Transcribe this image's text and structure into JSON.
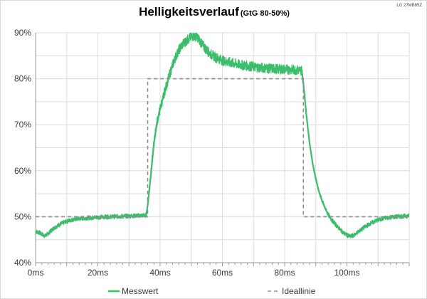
{
  "corner_label": "LG 27MB85Z",
  "chart_data": {
    "type": "line",
    "title": "Helligkeitsverlauf",
    "subtitle": "(GtG 80-50%)",
    "xlabel": "",
    "ylabel": "",
    "xlim": [
      0,
      120
    ],
    "ylim": [
      40,
      90
    ],
    "x_unit": "ms",
    "y_unit": "%",
    "grid": true,
    "legend_position": "bottom",
    "x_ticks": [
      0,
      20,
      40,
      60,
      80,
      100
    ],
    "x_tick_labels": [
      "0ms",
      "20ms",
      "40ms",
      "60ms",
      "80ms",
      "100ms"
    ],
    "y_ticks": [
      40,
      50,
      60,
      70,
      80,
      90
    ],
    "y_tick_labels": [
      "40%",
      "50%",
      "60%",
      "70%",
      "80%",
      "90%"
    ],
    "series": [
      {
        "name": "Messwert",
        "color": "#3cbd6b",
        "style": "solid-noisy",
        "x": [
          0,
          1,
          2,
          3,
          4,
          5,
          6,
          8,
          10,
          12,
          14,
          16,
          18,
          20,
          24,
          28,
          32,
          35.5,
          36,
          37,
          38,
          39,
          40,
          41,
          42,
          43,
          44,
          45,
          46,
          47,
          48,
          49,
          50,
          51,
          52,
          53,
          54,
          55,
          56,
          58,
          60,
          62,
          64,
          66,
          70,
          74,
          78,
          82,
          85.5,
          86,
          87,
          88,
          89,
          90,
          91,
          92,
          93,
          94,
          95,
          96,
          97,
          98,
          99,
          100,
          101,
          102,
          104,
          106,
          108,
          110,
          112,
          114,
          116,
          118,
          120
        ],
        "y": [
          46.8,
          46.6,
          46.2,
          45.8,
          46.3,
          47.0,
          47.6,
          48.4,
          49.0,
          49.4,
          49.6,
          49.7,
          49.8,
          49.9,
          50.0,
          50.1,
          50.2,
          50.3,
          52.5,
          59.0,
          66.0,
          70.5,
          73.5,
          76.0,
          78.5,
          80.8,
          83.0,
          84.8,
          86.2,
          87.3,
          88.0,
          88.6,
          89.1,
          89.3,
          89.0,
          88.0,
          87.0,
          86.2,
          85.5,
          84.6,
          84.0,
          83.6,
          83.3,
          83.0,
          82.6,
          82.3,
          82.1,
          82.0,
          81.8,
          79.0,
          72.0,
          66.0,
          61.5,
          58.2,
          55.5,
          53.5,
          51.8,
          50.5,
          49.4,
          48.6,
          47.8,
          47.1,
          46.4,
          46.0,
          45.7,
          45.9,
          46.9,
          47.9,
          48.7,
          49.3,
          49.7,
          49.9,
          50.0,
          50.1,
          50.2
        ]
      },
      {
        "name": "Ideallinie",
        "color": "#8c8c8c",
        "style": "dashed",
        "x": [
          0,
          36,
          36,
          86,
          86,
          120
        ],
        "y": [
          50,
          50,
          80,
          80,
          50,
          50
        ]
      }
    ]
  }
}
